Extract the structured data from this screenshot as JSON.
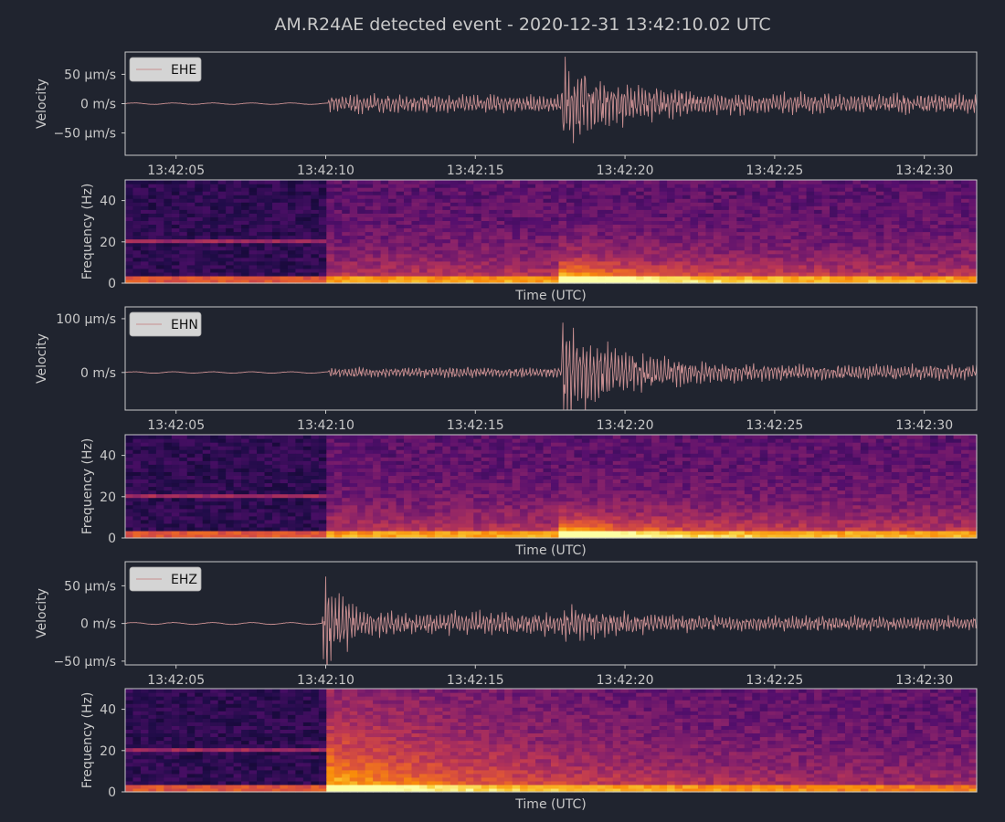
{
  "figure": {
    "title": "AM.R24AE detected event - 2020-12-31 13:42:10.02 UTC",
    "background": "#20242f",
    "text_color": "#c9c9c9",
    "trace_color": "#c98f91",
    "legend_background": "#d4d4d4",
    "legend_text_color": "#111111"
  },
  "chart_data": [
    {
      "type": "line",
      "channel": "EHE",
      "legend_label": "EHE",
      "ylabel": "Velocity",
      "xlim_seconds": [
        3.3,
        31.75
      ],
      "ylim_um_s": [
        -88,
        88
      ],
      "y_ticks": [
        {
          "value": 50,
          "label": "50 µm/s"
        },
        {
          "value": 0,
          "label": "0 m/s"
        },
        {
          "value": -50,
          "label": "−50 µm/s"
        }
      ],
      "x_ticks": [
        {
          "value": 5,
          "label": "13:42:05"
        },
        {
          "value": 10,
          "label": "13:42:10"
        },
        {
          "value": 15,
          "label": "13:42:15"
        },
        {
          "value": 20,
          "label": "13:42:20"
        },
        {
          "value": 25,
          "label": "13:42:25"
        },
        {
          "value": 30,
          "label": "13:42:30"
        }
      ],
      "legend_position": "upper-left",
      "envelope": {
        "pre_event_amplitude_um_s": 1,
        "p_arrival_time_s": 10.1,
        "p_amplitude_um_s": 16,
        "s_arrival_time_s": 17.9,
        "s_peak_amplitude_um_s": 80,
        "coda_amplitude_um_s": 18
      }
    },
    {
      "type": "heatmap",
      "channel": "EHE",
      "xlabel": "Time (UTC)",
      "ylabel": "Frequency (Hz)",
      "ylim_hz": [
        0,
        50
      ],
      "y_ticks": [
        0,
        20,
        40
      ],
      "colormap": "inferno",
      "features": {
        "noise_line_hz": 20,
        "p_arrival_time_s": 10.1,
        "s_arrival_time_s": 17.9,
        "s_energy_band_hz": [
          0,
          15
        ]
      }
    },
    {
      "type": "line",
      "channel": "EHN",
      "legend_label": "EHN",
      "ylabel": "Velocity",
      "xlim_seconds": [
        3.3,
        31.75
      ],
      "ylim_um_s": [
        -70,
        122
      ],
      "y_ticks": [
        {
          "value": 100,
          "label": "100 µm/s"
        },
        {
          "value": 0,
          "label": "0 m/s"
        }
      ],
      "x_ticks": [
        {
          "value": 5,
          "label": "13:42:05"
        },
        {
          "value": 10,
          "label": "13:42:10"
        },
        {
          "value": 15,
          "label": "13:42:15"
        },
        {
          "value": 20,
          "label": "13:42:20"
        },
        {
          "value": 25,
          "label": "13:42:25"
        },
        {
          "value": 30,
          "label": "13:42:30"
        }
      ],
      "legend_position": "upper-left",
      "envelope": {
        "pre_event_amplitude_um_s": 1,
        "p_arrival_time_s": 10.1,
        "p_amplitude_um_s": 10,
        "s_arrival_time_s": 17.9,
        "s_peak_amplitude_um_s": 105,
        "coda_amplitude_um_s": 15
      }
    },
    {
      "type": "heatmap",
      "channel": "EHN",
      "xlabel": "Time (UTC)",
      "ylabel": "Frequency (Hz)",
      "ylim_hz": [
        0,
        50
      ],
      "y_ticks": [
        0,
        20,
        40
      ],
      "colormap": "inferno",
      "features": {
        "noise_line_hz": 20,
        "p_arrival_time_s": 10.1,
        "s_arrival_time_s": 17.9,
        "s_energy_band_hz": [
          0,
          12
        ]
      }
    },
    {
      "type": "line",
      "channel": "EHZ",
      "legend_label": "EHZ",
      "ylabel": "Velocity",
      "xlim_seconds": [
        3.3,
        31.75
      ],
      "ylim_um_s": [
        -55,
        82
      ],
      "y_ticks": [
        {
          "value": 50,
          "label": "50 µm/s"
        },
        {
          "value": 0,
          "label": "0 m/s"
        },
        {
          "value": -50,
          "label": "−50 µm/s"
        }
      ],
      "x_ticks": [
        {
          "value": 5,
          "label": "13:42:05"
        },
        {
          "value": 10,
          "label": "13:42:10"
        },
        {
          "value": 15,
          "label": "13:42:15"
        },
        {
          "value": 20,
          "label": "13:42:20"
        },
        {
          "value": 25,
          "label": "13:42:25"
        },
        {
          "value": 30,
          "label": "13:42:30"
        }
      ],
      "legend_position": "upper-left",
      "envelope": {
        "pre_event_amplitude_um_s": 1,
        "p_arrival_time_s": 9.9,
        "p_peak_amplitude_um_s": 72,
        "s_arrival_time_s": 17.9,
        "s_peak_amplitude_um_s": 28,
        "coda_amplitude_um_s": 10
      }
    },
    {
      "type": "heatmap",
      "channel": "EHZ",
      "xlabel": "Time (UTC)",
      "ylabel": "Frequency (Hz)",
      "ylim_hz": [
        0,
        50
      ],
      "y_ticks": [
        0,
        20,
        40
      ],
      "colormap": "inferno",
      "features": {
        "noise_line_hz": 21,
        "p_arrival_time_s": 9.9,
        "p_energy_band_hz": [
          0,
          45
        ],
        "s_arrival_time_s": 17.9
      }
    }
  ]
}
